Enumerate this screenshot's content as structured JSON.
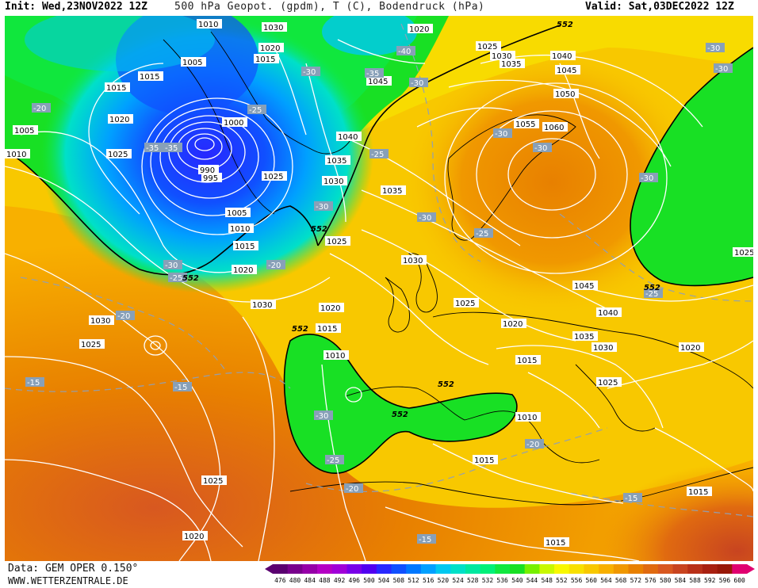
{
  "header": {
    "init": "Init: Wed,23NOV2022 12Z",
    "title": "500 hPa Geopot. (gpdm), T (C), Bodendruck (hPa)",
    "valid": "Valid: Sat,03DEC2022 12Z"
  },
  "footer": {
    "source": "Data: GEM OPER 0.150°",
    "website": "WWW.WETTERZENTRALE.DE"
  },
  "colors": {
    "green_552": "#18e024",
    "contour": "#ffffff",
    "coast": "#000000"
  },
  "colorbar": {
    "ticks": [
      "476",
      "480",
      "484",
      "488",
      "492",
      "496",
      "500",
      "504",
      "508",
      "512",
      "516",
      "520",
      "524",
      "528",
      "532",
      "536",
      "540",
      "544",
      "548",
      "552",
      "556",
      "560",
      "564",
      "568",
      "572",
      "576",
      "580",
      "584",
      "588",
      "592",
      "596",
      "600"
    ],
    "colors": [
      "#5a0070",
      "#78008c",
      "#9600a8",
      "#b400c4",
      "#a000d8",
      "#7800e8",
      "#5000f0",
      "#2828ff",
      "#1050ff",
      "#0078ff",
      "#00a0ff",
      "#00c8f0",
      "#00e0c8",
      "#00e8a0",
      "#00f078",
      "#10e840",
      "#18e024",
      "#78f000",
      "#c8f800",
      "#f8f800",
      "#f8e000",
      "#f8c800",
      "#f8b000",
      "#f09800",
      "#e88000",
      "#e06a10",
      "#d85820",
      "#c84420",
      "#b83018",
      "#a82010",
      "#981808",
      "#e00070"
    ]
  },
  "pressure_labels": [
    "1010",
    "1005",
    "1015",
    "1020",
    "1025",
    "1030",
    "1035",
    "1040",
    "1045",
    "1050",
    "1055",
    "1060",
    "990",
    "995",
    "1000"
  ],
  "temp_labels": [
    "-15",
    "-20",
    "-25",
    "-30",
    "-35",
    "-40"
  ],
  "geopot_label": "552"
}
